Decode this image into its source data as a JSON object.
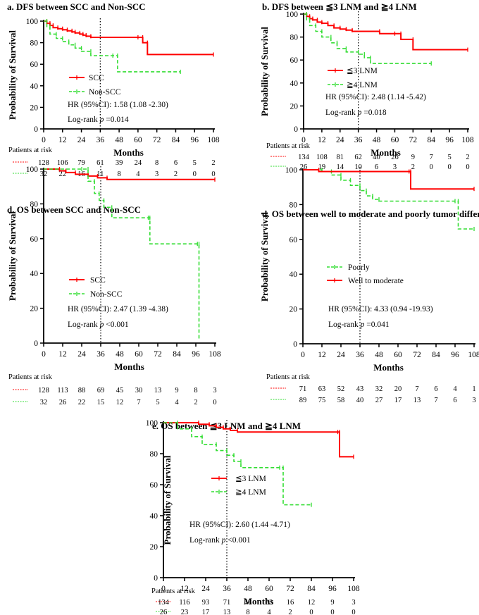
{
  "figure": {
    "width": 680,
    "height": 873
  },
  "colors": {
    "red": "#ff0000",
    "green": "#33dd33",
    "black": "#000000"
  },
  "chart_data": [
    {
      "type": "line",
      "title": "a. DFS between SCC and Non-SCC",
      "xlabel": "Months",
      "ylabel": "Probability of Survival",
      "xlim": [
        0,
        108
      ],
      "ylim": [
        0,
        100
      ],
      "xticks": [
        0,
        12,
        24,
        36,
        48,
        60,
        72,
        84,
        96,
        108
      ],
      "yticks": [
        0,
        20,
        40,
        60,
        80,
        100
      ],
      "vline": 36,
      "series": [
        {
          "name": "SCC",
          "style": "solid",
          "color": "#ff0000",
          "x": [
            0,
            2,
            4,
            6,
            9,
            12,
            15,
            18,
            20,
            23,
            25,
            27,
            30,
            60,
            63,
            66,
            108
          ],
          "y": [
            100,
            98,
            96,
            94,
            93,
            92,
            91,
            90,
            89,
            88,
            87,
            86,
            85,
            85,
            80,
            69,
            69
          ]
        },
        {
          "name": "Non-SCC",
          "style": "dashed",
          "color": "#33dd33",
          "x": [
            0,
            2,
            4,
            8,
            12,
            16,
            20,
            24,
            30,
            44,
            47,
            87
          ],
          "y": [
            100,
            95,
            88,
            84,
            81,
            78,
            75,
            72,
            68,
            68,
            53,
            53
          ]
        }
      ],
      "hr_text": "HR (95%CI): 1.58 (1.08 -2.30)",
      "logrank_prefix": "Log-rank ",
      "logrank_p": "p",
      "logrank_value": " =0.014",
      "risk_header": "Patients at risk",
      "risk_rows": [
        [
          128,
          106,
          79,
          61,
          39,
          24,
          8,
          6,
          5,
          2
        ],
        [
          32,
          22,
          16,
          11,
          8,
          4,
          3,
          2,
          0,
          0
        ]
      ]
    },
    {
      "type": "line",
      "title": "b. DFS between ≦3 LNM and ≧4 LNM",
      "xlabel": "Months",
      "ylabel": "Probability of Survival",
      "xlim": [
        0,
        108
      ],
      "ylim": [
        0,
        100
      ],
      "xticks": [
        0,
        12,
        24,
        36,
        48,
        60,
        72,
        84,
        96,
        108
      ],
      "yticks": [
        0,
        20,
        40,
        60,
        80,
        100
      ],
      "vline": 36,
      "series": [
        {
          "name": "≦3 LNM",
          "style": "solid",
          "color": "#ff0000",
          "x": [
            0,
            2,
            4,
            6,
            9,
            12,
            16,
            20,
            24,
            28,
            32,
            50,
            60,
            64,
            72,
            108
          ],
          "y": [
            100,
            98,
            96,
            95,
            93,
            92,
            90,
            88,
            87,
            86,
            85,
            83,
            83,
            78,
            69,
            69
          ]
        },
        {
          "name": "≧4 LNM",
          "style": "dashed",
          "color": "#33dd33",
          "x": [
            0,
            2,
            4,
            8,
            12,
            18,
            22,
            28,
            36,
            40,
            44,
            84
          ],
          "y": [
            100,
            95,
            90,
            85,
            80,
            75,
            70,
            67,
            65,
            62,
            57,
            57
          ]
        }
      ],
      "hr_text": "HR (95%CI): 2.48 (1.14 -5.42)",
      "logrank_prefix": "Log-rank ",
      "logrank_p": "p",
      "logrank_value": " =0.018",
      "risk_header": "Patients at risk",
      "risk_rows": [
        [
          134,
          108,
          81,
          62,
          40,
          26,
          9,
          7,
          5,
          2
        ],
        [
          26,
          19,
          14,
          10,
          6,
          3,
          2,
          0,
          0,
          0
        ]
      ]
    },
    {
      "type": "line",
      "title": "d. OS between SCC and Non-SCC",
      "xlabel": "Months",
      "ylabel": "Probability of Survival",
      "xlim": [
        0,
        108
      ],
      "ylim": [
        0,
        100
      ],
      "xticks": [
        0,
        12,
        24,
        36,
        48,
        60,
        72,
        84,
        96,
        108
      ],
      "yticks": [
        0,
        20,
        40,
        60,
        80,
        100
      ],
      "vline": 36,
      "series": [
        {
          "name": "SCC",
          "style": "solid",
          "color": "#ff0000",
          "x": [
            0,
            10,
            14,
            20,
            28,
            34,
            40,
            108
          ],
          "y": [
            100,
            99,
            98,
            97,
            96,
            95,
            94,
            94
          ]
        },
        {
          "name": "Non-SCC",
          "style": "dashed",
          "color": "#33dd33",
          "x": [
            0,
            24,
            28,
            32,
            35,
            38,
            43,
            66,
            67,
            97,
            98
          ],
          "y": [
            100,
            100,
            93,
            86,
            82,
            78,
            72,
            72,
            57,
            57,
            2
          ]
        }
      ],
      "hr_text": "HR (95%CI): 2.47 (1.39 -4.38)",
      "logrank_prefix": "Log-rank ",
      "logrank_p": "p",
      "logrank_value": " <0.001",
      "risk_header": "Patients at risk",
      "risk_rows": [
        [
          128,
          113,
          88,
          69,
          45,
          30,
          13,
          9,
          8,
          3
        ],
        [
          32,
          26,
          22,
          15,
          12,
          7,
          5,
          4,
          2,
          0
        ]
      ]
    },
    {
      "type": "line",
      "title": "d. OS between well to moderate and poorly tumor differentiation",
      "xlabel": "Months",
      "ylabel": "Probability of Survival",
      "xlim": [
        0,
        108
      ],
      "ylim": [
        0,
        100
      ],
      "xticks": [
        0,
        12,
        24,
        36,
        48,
        60,
        72,
        84,
        96,
        108
      ],
      "yticks": [
        0,
        20,
        40,
        60,
        80,
        100
      ],
      "vline": 36,
      "series": [
        {
          "name": "Poorly",
          "style": "dashed",
          "color": "#33dd33",
          "x": [
            0,
            12,
            18,
            24,
            30,
            36,
            40,
            44,
            48,
            96,
            98,
            108
          ],
          "y": [
            100,
            99,
            97,
            94,
            91,
            88,
            85,
            83,
            82,
            82,
            66,
            66
          ]
        },
        {
          "name": "Well to moderate",
          "style": "solid",
          "color": "#ff0000",
          "x": [
            0,
            10,
            67,
            68,
            108
          ],
          "y": [
            100,
            99,
            99,
            89,
            89
          ]
        }
      ],
      "hr_text": "HR (95%CI): 4.33 (0.94 -19.93)",
      "logrank_prefix": "Log-rank ",
      "logrank_p": "p",
      "logrank_value": " =0.041",
      "risk_header": "Patients at risk",
      "risk_rows": [
        [
          71,
          63,
          52,
          43,
          32,
          20,
          7,
          6,
          4,
          1
        ],
        [
          89,
          75,
          58,
          40,
          27,
          17,
          13,
          7,
          6,
          3
        ]
      ]
    },
    {
      "type": "line",
      "title": "e. OS between ≦3 LNM and ≧4 LNM",
      "xlabel": "Months",
      "ylabel": "Probability of Survival",
      "xlim": [
        0,
        108
      ],
      "ylim": [
        0,
        100
      ],
      "xticks": [
        0,
        12,
        24,
        36,
        48,
        60,
        72,
        84,
        96,
        108
      ],
      "yticks": [
        0,
        20,
        40,
        60,
        80,
        100
      ],
      "vline": 36,
      "series": [
        {
          "name": "≦3 LNM",
          "style": "solid",
          "color": "#ff0000",
          "x": [
            0,
            20,
            26,
            30,
            34,
            38,
            42,
            99,
            100,
            108
          ],
          "y": [
            100,
            99,
            98,
            97,
            96,
            95,
            94,
            94,
            78,
            78
          ]
        },
        {
          "name": "≧4 LNM",
          "style": "dashed",
          "color": "#33dd33",
          "x": [
            0,
            8,
            16,
            22,
            30,
            36,
            40,
            44,
            66,
            68,
            84
          ],
          "y": [
            100,
            96,
            91,
            86,
            82,
            79,
            75,
            71,
            71,
            47,
            47
          ]
        }
      ],
      "hr_text": "HR (95%CI): 2.60 (1.44 -4.71)",
      "logrank_prefix": "Log-rank ",
      "logrank_p": "p",
      "logrank_value": " <0.001",
      "risk_header": "Patients at risk",
      "risk_rows": [
        [
          134,
          116,
          93,
          71,
          48,
          33,
          16,
          12,
          9,
          3
        ],
        [
          26,
          23,
          17,
          13,
          8,
          4,
          2,
          0,
          0,
          0
        ]
      ]
    }
  ]
}
